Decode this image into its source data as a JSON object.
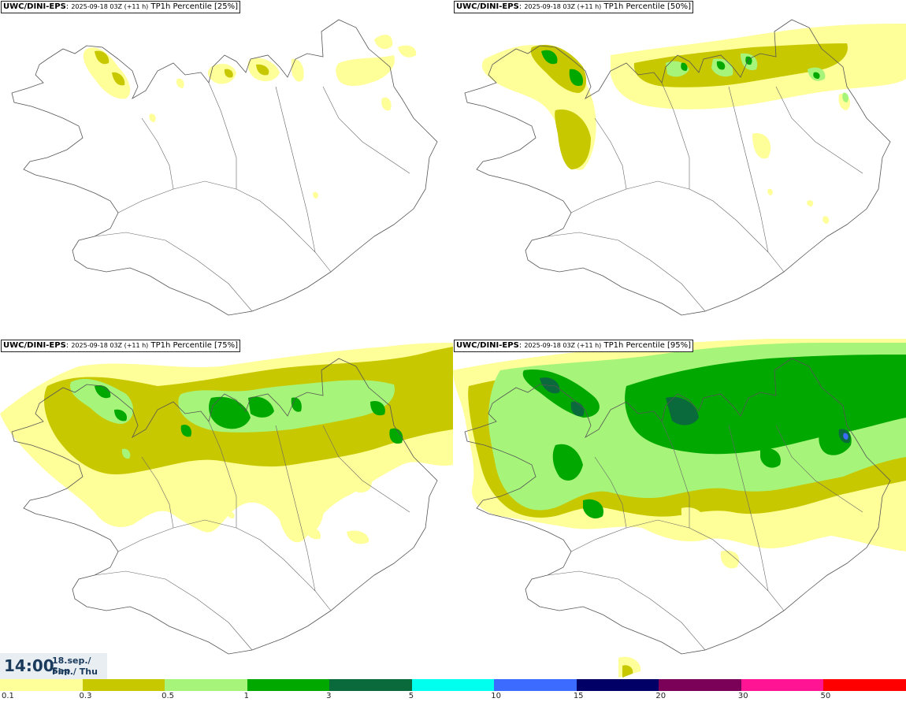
{
  "panels": [
    {
      "model": "UWC/DINI-EPS",
      "run": "2025-09-18 03Z (+11 h)",
      "field": "TP1h Percentile [25%]"
    },
    {
      "model": "UWC/DINI-EPS",
      "run": "2025-09-18 03Z (+11 h)",
      "field": "TP1h Percentile [50%]"
    },
    {
      "model": "UWC/DINI-EPS",
      "run": "2025-09-18 03Z (+11 h)",
      "field": "TP1h Percentile [75%]"
    },
    {
      "model": "UWC/DINI-EPS",
      "run": "2025-09-18 03Z (+11 h)",
      "field": "TP1h Percentile [95%]"
    }
  ],
  "valid_time": {
    "clock": "14:00",
    "date_line1": "18.sep./ Sep",
    "date_line2": "Fim./ Thu"
  },
  "legend": {
    "ticks": [
      "0.1",
      "0.3",
      "0.5",
      "1",
      "3",
      "5",
      "10",
      "15",
      "20",
      "30",
      "50"
    ],
    "colors": [
      "#ffff99",
      "#c8c800",
      "#a6f57a",
      "#00a800",
      "#0a6a3c",
      "#00ffee",
      "#3c6cff",
      "#000066",
      "#7a0058",
      "#ff1493",
      "#ff0000"
    ]
  }
}
